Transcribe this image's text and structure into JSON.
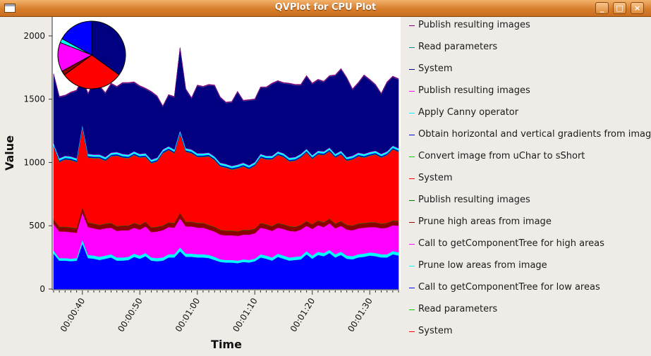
{
  "window": {
    "title": "QVPlot for CPU Plot",
    "buttons": {
      "minimize": "_",
      "maximize": "□",
      "close": "×"
    }
  },
  "chart_data": {
    "type": "area",
    "stacked": true,
    "xlabel": "Time",
    "ylabel": "Value",
    "ylim": [
      0,
      2150
    ],
    "xlim": [
      35,
      95
    ],
    "yticks": [
      0,
      500,
      1000,
      1500,
      2000
    ],
    "xticks": [
      {
        "value": 40,
        "label": "00:00:40"
      },
      {
        "value": 50,
        "label": "00:00:50"
      },
      {
        "value": 60,
        "label": "00:01:00"
      },
      {
        "value": 70,
        "label": "00:01:10"
      },
      {
        "value": 80,
        "label": "00:01:20"
      },
      {
        "value": 90,
        "label": "00:01:30"
      }
    ],
    "grid": false,
    "x": [
      35,
      36,
      37,
      38,
      39,
      40,
      41,
      42,
      43,
      44,
      45,
      46,
      47,
      48,
      49,
      50,
      51,
      52,
      53,
      54,
      55,
      56,
      57,
      58,
      59,
      60,
      61,
      62,
      63,
      64,
      65,
      66,
      67,
      68,
      69,
      70,
      71,
      72,
      73,
      74,
      75,
      76,
      77,
      78,
      79,
      80,
      81,
      82,
      83,
      84,
      85,
      86,
      87,
      88,
      89,
      90,
      91,
      92,
      93,
      94,
      95
    ],
    "series": [
      {
        "name": "Call to getComponentTree for low areas",
        "color": "#0000ff",
        "values": [
          280,
          225,
          225,
          220,
          225,
          360,
          245,
          240,
          230,
          240,
          250,
          225,
          225,
          230,
          255,
          240,
          260,
          225,
          220,
          225,
          250,
          250,
          300,
          255,
          255,
          250,
          250,
          245,
          230,
          215,
          210,
          210,
          205,
          215,
          210,
          220,
          250,
          240,
          225,
          255,
          240,
          225,
          230,
          235,
          275,
          240,
          270,
          260,
          285,
          250,
          270,
          240,
          235,
          250,
          255,
          265,
          260,
          250,
          250,
          275,
          265
        ]
      },
      {
        "name": "Prune low areas from image",
        "color": "#00ffff",
        "values": [
          25,
          20,
          20,
          20,
          20,
          30,
          25,
          25,
          25,
          25,
          25,
          25,
          25,
          25,
          25,
          25,
          25,
          25,
          25,
          25,
          25,
          25,
          30,
          25,
          25,
          25,
          25,
          25,
          25,
          20,
          20,
          20,
          20,
          20,
          20,
          20,
          25,
          25,
          25,
          25,
          25,
          25,
          25,
          25,
          25,
          25,
          25,
          25,
          25,
          25,
          25,
          25,
          25,
          25,
          25,
          25,
          25,
          25,
          25,
          25,
          25
        ]
      },
      {
        "name": "Call to getComponentTree for high areas",
        "color": "#ff00ff",
        "values": [
          210,
          210,
          210,
          210,
          200,
          215,
          220,
          215,
          215,
          215,
          210,
          210,
          215,
          210,
          205,
          205,
          210,
          200,
          210,
          215,
          215,
          210,
          230,
          215,
          215,
          210,
          210,
          200,
          200,
          195,
          195,
          195,
          195,
          195,
          200,
          200,
          210,
          210,
          210,
          205,
          210,
          210,
          200,
          210,
          200,
          210,
          210,
          205,
          210,
          205,
          205,
          205,
          205,
          205,
          205,
          200,
          205,
          205,
          210,
          205,
          210
        ]
      },
      {
        "name": "Prune high areas from image",
        "color": "#8b0000",
        "values": [
          35,
          35,
          35,
          35,
          35,
          40,
          35,
          35,
          35,
          35,
          35,
          35,
          35,
          35,
          35,
          35,
          35,
          35,
          35,
          35,
          35,
          35,
          40,
          35,
          35,
          35,
          35,
          35,
          35,
          35,
          35,
          35,
          35,
          35,
          35,
          35,
          35,
          35,
          35,
          35,
          35,
          35,
          35,
          35,
          35,
          35,
          35,
          35,
          35,
          35,
          35,
          35,
          35,
          35,
          35,
          35,
          35,
          35,
          35,
          35,
          35
        ]
      },
      {
        "name": "Publish resulting images",
        "color": "#008000",
        "values": [
          3,
          3,
          3,
          3,
          3,
          3,
          3,
          3,
          3,
          3,
          3,
          3,
          3,
          3,
          3,
          3,
          3,
          3,
          3,
          3,
          3,
          3,
          3,
          3,
          3,
          3,
          3,
          3,
          3,
          3,
          3,
          3,
          3,
          3,
          3,
          3,
          3,
          3,
          3,
          3,
          3,
          3,
          3,
          3,
          3,
          3,
          3,
          3,
          3,
          3,
          3,
          3,
          3,
          3,
          3,
          3,
          3,
          3,
          3,
          3,
          3
        ]
      },
      {
        "name": "System",
        "color": "#ff0000",
        "values": [
          570,
          510,
          530,
          530,
          520,
          620,
          510,
          515,
          525,
          495,
          525,
          555,
          535,
          530,
          535,
          530,
          510,
          505,
          515,
          570,
          570,
          550,
          620,
          550,
          540,
          520,
          520,
          540,
          525,
          500,
          495,
          480,
          495,
          500,
          480,
          495,
          515,
          510,
          525,
          535,
          530,
          510,
          520,
          530,
          540,
          515,
          520,
          530,
          530,
          520,
          525,
          505,
          520,
          530,
          515,
          525,
          535,
          520,
          535,
          560,
          545
        ]
      },
      {
        "name": "Convert image from uChar to sShort",
        "color": "#00cc00",
        "values": [
          3,
          3,
          3,
          3,
          3,
          3,
          3,
          3,
          3,
          3,
          3,
          3,
          3,
          3,
          3,
          3,
          3,
          3,
          3,
          3,
          3,
          3,
          3,
          3,
          3,
          3,
          3,
          3,
          3,
          3,
          3,
          3,
          3,
          3,
          3,
          3,
          3,
          3,
          3,
          3,
          3,
          3,
          3,
          3,
          3,
          3,
          3,
          3,
          3,
          3,
          3,
          3,
          3,
          3,
          3,
          3,
          3,
          3,
          3,
          3,
          3
        ]
      },
      {
        "name": "Obtain horizontal and vertical gradients from image",
        "color": "#0000cd",
        "values": [
          10,
          10,
          10,
          10,
          10,
          12,
          10,
          10,
          10,
          10,
          10,
          10,
          10,
          10,
          10,
          10,
          10,
          10,
          10,
          10,
          10,
          10,
          12,
          10,
          10,
          10,
          10,
          10,
          10,
          10,
          10,
          10,
          10,
          10,
          10,
          10,
          10,
          10,
          10,
          10,
          10,
          10,
          10,
          10,
          10,
          10,
          10,
          10,
          10,
          10,
          10,
          10,
          10,
          10,
          10,
          10,
          10,
          10,
          10,
          10,
          10
        ]
      },
      {
        "name": "Apply Canny operator",
        "color": "#00ffff",
        "values": [
          15,
          15,
          15,
          15,
          15,
          15,
          15,
          15,
          15,
          15,
          15,
          15,
          15,
          15,
          15,
          15,
          15,
          15,
          15,
          15,
          15,
          15,
          15,
          15,
          15,
          15,
          15,
          15,
          15,
          15,
          15,
          15,
          15,
          15,
          15,
          15,
          15,
          15,
          15,
          15,
          15,
          15,
          15,
          15,
          15,
          15,
          15,
          15,
          15,
          15,
          15,
          15,
          15,
          15,
          15,
          15,
          15,
          15,
          15,
          15,
          15
        ]
      },
      {
        "name": "Publish resulting images",
        "color": "#ff00ff",
        "values": [
          3,
          3,
          3,
          3,
          3,
          3,
          3,
          3,
          3,
          3,
          3,
          3,
          3,
          3,
          3,
          3,
          3,
          3,
          3,
          3,
          3,
          3,
          3,
          3,
          3,
          3,
          3,
          3,
          3,
          3,
          3,
          3,
          3,
          3,
          3,
          3,
          3,
          3,
          3,
          3,
          3,
          3,
          3,
          3,
          3,
          3,
          3,
          3,
          3,
          3,
          3,
          3,
          3,
          3,
          3,
          3,
          3,
          3,
          3,
          3,
          3
        ]
      },
      {
        "name": "System",
        "color": "#000080",
        "values": [
          540,
          480,
          470,
          500,
          530,
          360,
          470,
          570,
          535,
          500,
          540,
          510,
          555,
          560,
          540,
          530,
          505,
          530,
          480,
          335,
          400,
          410,
          645,
          460,
          400,
          530,
          520,
          530,
          555,
          510,
          480,
          500,
          570,
          485,
          510,
          490,
          520,
          535,
          565,
          550,
          550,
          580,
          565,
          540,
          570,
          560,
          555,
          545,
          560,
          615,
          640,
          620,
          520,
          545,
          615,
          565,
          515,
          470,
          540,
          540,
          540
        ]
      },
      {
        "name": "Read parameters",
        "color": "#008b8b",
        "values": [
          2,
          2,
          2,
          2,
          2,
          2,
          2,
          2,
          2,
          2,
          2,
          2,
          2,
          2,
          2,
          2,
          2,
          2,
          2,
          2,
          2,
          2,
          2,
          2,
          2,
          2,
          2,
          2,
          2,
          2,
          2,
          2,
          2,
          2,
          2,
          2,
          2,
          2,
          2,
          2,
          2,
          2,
          2,
          2,
          2,
          2,
          2,
          2,
          2,
          2,
          2,
          2,
          2,
          2,
          2,
          2,
          2,
          2,
          2,
          2,
          2
        ]
      },
      {
        "name": "Publish resulting images",
        "color": "#800080",
        "values": [
          6,
          6,
          6,
          6,
          6,
          6,
          6,
          6,
          6,
          6,
          6,
          6,
          6,
          6,
          6,
          6,
          6,
          6,
          6,
          6,
          6,
          6,
          6,
          6,
          6,
          6,
          6,
          6,
          6,
          6,
          6,
          6,
          6,
          6,
          6,
          6,
          6,
          6,
          6,
          6,
          6,
          6,
          6,
          6,
          6,
          6,
          6,
          6,
          6,
          6,
          6,
          6,
          6,
          6,
          6,
          6,
          6,
          6,
          6,
          6,
          6
        ]
      }
    ],
    "pie": {
      "slices": [
        {
          "color": "#000080",
          "value": 35
        },
        {
          "color": "#ff0000",
          "value": 30
        },
        {
          "color": "#8b0000",
          "value": 2
        },
        {
          "color": "#ff00ff",
          "value": 14
        },
        {
          "color": "#00ffff",
          "value": 2
        },
        {
          "color": "#0000ff",
          "value": 17
        }
      ]
    },
    "legend": {
      "placement": "right",
      "entries": [
        {
          "label": "Publish resulting images",
          "color": "#800080"
        },
        {
          "label": "Read parameters",
          "color": "#008b8b"
        },
        {
          "label": "System",
          "color": "#000080"
        },
        {
          "label": "Publish resulting images",
          "color": "#ff00ff"
        },
        {
          "label": "Apply Canny operator",
          "color": "#00ffff"
        },
        {
          "label": "Obtain horizontal and vertical gradients from image",
          "color": "#0000cd"
        },
        {
          "label": "Convert image from uChar to sShort",
          "color": "#00cc00"
        },
        {
          "label": "System",
          "color": "#ff0000"
        },
        {
          "label": "Publish resulting images",
          "color": "#008000"
        },
        {
          "label": "Prune high areas from image",
          "color": "#8b0000"
        },
        {
          "label": "Call to getComponentTree for high areas",
          "color": "#ff00ff"
        },
        {
          "label": "Prune low areas from image",
          "color": "#00ffff"
        },
        {
          "label": "Call to getComponentTree for low areas",
          "color": "#0000ff"
        },
        {
          "label": "Read parameters",
          "color": "#00cc00"
        },
        {
          "label": "System",
          "color": "#ff0000"
        }
      ]
    }
  }
}
